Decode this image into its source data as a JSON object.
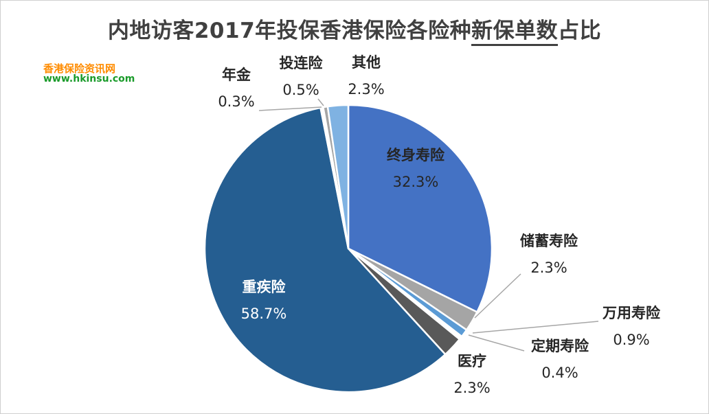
{
  "chart_data": {
    "type": "pie",
    "title_prefix": "内地访客2017年投保香港保险各险种",
    "title_emph": "新保单数",
    "title_suffix": "占比",
    "slices": [
      {
        "label": "终身寿险",
        "pct_label": "32.3%",
        "value": 32.3,
        "color": "#4472c4"
      },
      {
        "label": "储蓄寿险",
        "pct_label": "2.3%",
        "value": 2.3,
        "color": "#a5a5a5"
      },
      {
        "label": "万用寿险",
        "pct_label": "0.9%",
        "value": 0.9,
        "color": "#5b9bd5"
      },
      {
        "label": "定期寿险",
        "pct_label": "0.4%",
        "value": 0.4,
        "color": "#ffffff"
      },
      {
        "label": "医疗",
        "pct_label": "2.3%",
        "value": 2.3,
        "color": "#595959"
      },
      {
        "label": "重疾险",
        "pct_label": "58.7%",
        "value": 58.7,
        "color": "#255e91"
      },
      {
        "label": "年金",
        "pct_label": "0.3%",
        "value": 0.3,
        "color": "#ffffff"
      },
      {
        "label": "投连险",
        "pct_label": "0.5%",
        "value": 0.5,
        "color": "#a5a5a5"
      },
      {
        "label": "其他",
        "pct_label": "2.3%",
        "value": 2.3,
        "color": "#7fb2e2"
      }
    ]
  },
  "watermark": {
    "line1": "香港保险资讯网",
    "line2": "www.hkinsu.com"
  }
}
